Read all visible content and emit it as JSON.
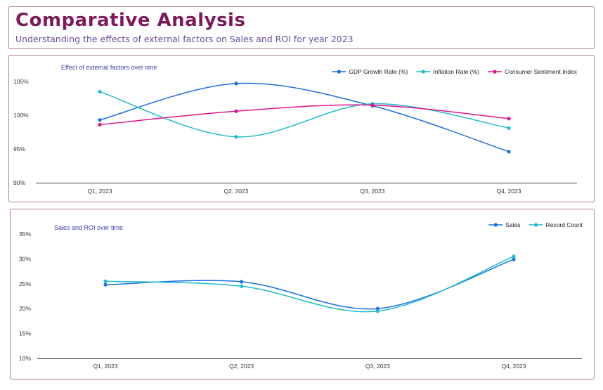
{
  "header": {
    "title": "Comparative Analysis",
    "subtitle": "Understanding the effects of external factors on Sales and ROI for year 2023"
  },
  "colors": {
    "title": "#7d1a5b",
    "subtitle": "#6a4ba0",
    "chart_title": "#3b3ea8",
    "panel_border": "#b07a96",
    "gdp": "#1a6fe0",
    "inflation": "#1fbcc8",
    "sentiment": "#e0148c",
    "sales": "#1a6fe0",
    "record_count": "#1fbcc8"
  },
  "chart_data": [
    {
      "type": "line",
      "title": "Effect of external factors over time",
      "categories": [
        "Q1, 2023",
        "Q2, 2023",
        "Q3, 2023",
        "Q4, 2023"
      ],
      "yticks": [
        "90%",
        "95%",
        "100%",
        "105%"
      ],
      "ylim": [
        90,
        105
      ],
      "legend_position": "top-right",
      "smooth": true,
      "grid": false,
      "series": [
        {
          "name": "GDP Growth Rate (%)",
          "color_key": "gdp",
          "values": [
            99.3,
            104.7,
            101.4,
            94.6
          ]
        },
        {
          "name": "Inflation Rate (%)",
          "color_key": "inflation",
          "values": [
            103.5,
            96.8,
            101.7,
            98.1
          ]
        },
        {
          "name": "Consumer Sentiment Index",
          "color_key": "sentiment",
          "values": [
            98.6,
            100.6,
            101.5,
            99.5
          ]
        }
      ]
    },
    {
      "type": "line",
      "title": "Sales and ROI over time",
      "categories": [
        "Q1, 2023",
        "Q2, 2023",
        "Q3, 2023",
        "Q4, 2023"
      ],
      "yticks": [
        "10%",
        "15%",
        "20%",
        "25%",
        "30%",
        "35%"
      ],
      "ylim": [
        10,
        35
      ],
      "legend_position": "top-right",
      "smooth": true,
      "grid": false,
      "series": [
        {
          "name": "Sales",
          "color_key": "sales",
          "values": [
            24.8,
            25.4,
            20.0,
            29.9
          ]
        },
        {
          "name": "Record Count",
          "color_key": "record_count",
          "values": [
            25.5,
            24.5,
            19.5,
            30.5
          ]
        }
      ]
    }
  ]
}
